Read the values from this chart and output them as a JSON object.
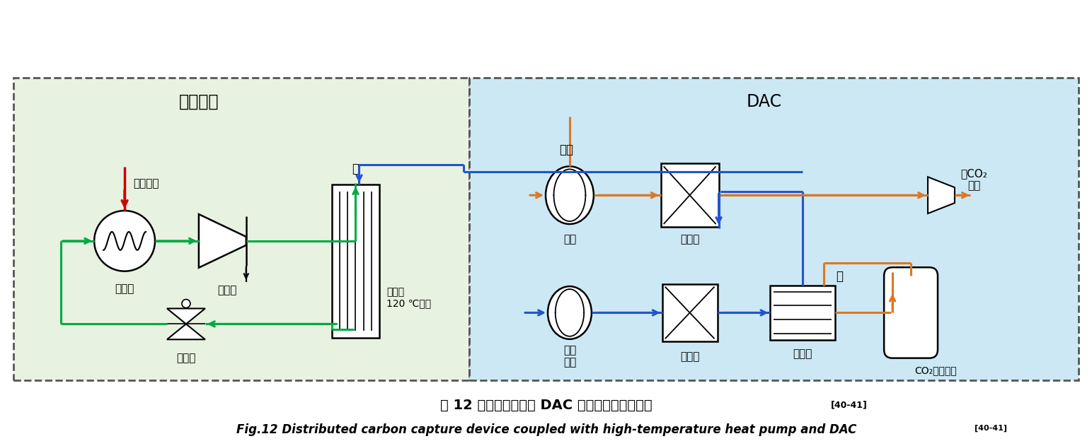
{
  "title_cn": "图 12 耦合高温热泵与 DAC 的分布式碳捕集装置",
  "title_cn_sup": "[40-41]",
  "title_en": "Fig.12 Distributed carbon capture device coupled with high-temperature heat pump and DAC",
  "title_en_sup": "[40-41]",
  "left_box_label": "余热热泵",
  "right_box_label": "DAC",
  "left_bg": "#e8f2e0",
  "right_bg": "#cce8f4",
  "box_border": "#555555",
  "green_color": "#00aa44",
  "blue_color": "#2255cc",
  "orange_color": "#dd7722",
  "red_color": "#cc0000",
  "components": {
    "evaporator_label": "蒸发器",
    "compressor_label": "压缩机",
    "expansion_label": "膨胀阀",
    "condenser_left_label": "冷凝器\n120 ℃蒸汽",
    "water_label_left": "水",
    "industrial_heat_label": "工业余热",
    "fan1_label": "风机",
    "desorption_label": "脱附塔",
    "fan2_label": "再生\n风机",
    "adsorption_label": "吸附塔",
    "condenser_right_label": "冷凝器",
    "co2_collector_label": "CO₂收集装置",
    "air_label": "空气",
    "no_co2_label": "无CO₂\n空气",
    "water_label_right": "水"
  }
}
